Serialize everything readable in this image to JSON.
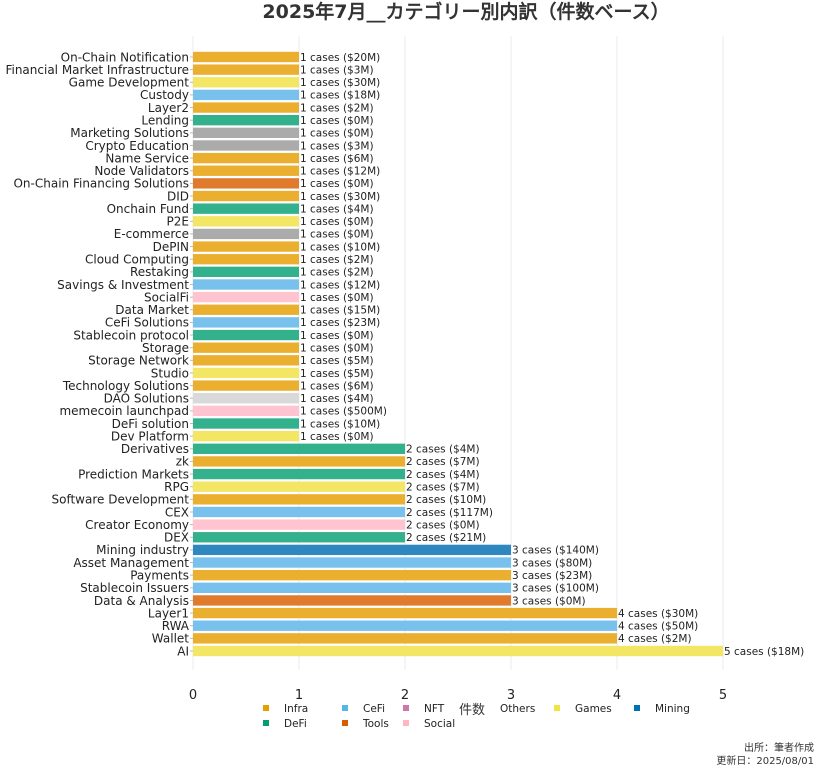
{
  "chart_data": {
    "type": "bar",
    "orientation": "horizontal",
    "title": "2025年7月__カテゴリー別内訳（件数ベース）",
    "xlabel": "件数",
    "ylabel": "",
    "xlim": [
      0,
      5.4
    ],
    "xticks": [
      "0",
      "1",
      "2",
      "3",
      "4",
      "5"
    ],
    "grid": true,
    "legend_placement": "bottom",
    "categories": [
      {
        "name": "On-Chain Notification",
        "count": 1,
        "label": "1 cases ($20M)",
        "group": "Infra"
      },
      {
        "name": "Financial Market Infrastructure",
        "count": 1,
        "label": "1 cases ($3M)",
        "group": "Infra"
      },
      {
        "name": "Game Development",
        "count": 1,
        "label": "1 cases ($30M)",
        "group": "Games"
      },
      {
        "name": "Custody",
        "count": 1,
        "label": "1 cases ($18M)",
        "group": "CeFi"
      },
      {
        "name": "Layer2",
        "count": 1,
        "label": "1 cases ($2M)",
        "group": "Infra"
      },
      {
        "name": "Lending",
        "count": 1,
        "label": "1 cases ($0M)",
        "group": "DeFi"
      },
      {
        "name": "Marketing Solutions",
        "count": 1,
        "label": "1 cases ($0M)",
        "group": "Others"
      },
      {
        "name": "Crypto Education",
        "count": 1,
        "label": "1 cases ($3M)",
        "group": "Others"
      },
      {
        "name": "Name Service",
        "count": 1,
        "label": "1 cases ($6M)",
        "group": "Infra"
      },
      {
        "name": "Node Validators",
        "count": 1,
        "label": "1 cases ($12M)",
        "group": "Infra"
      },
      {
        "name": "On-Chain Financing Solutions",
        "count": 1,
        "label": "1 cases ($0M)",
        "group": "Tools"
      },
      {
        "name": "DID",
        "count": 1,
        "label": "1 cases ($30M)",
        "group": "Infra"
      },
      {
        "name": "Onchain Fund",
        "count": 1,
        "label": "1 cases ($4M)",
        "group": "DeFi"
      },
      {
        "name": "P2E",
        "count": 1,
        "label": "1 cases ($0M)",
        "group": "Games"
      },
      {
        "name": "E-commerce",
        "count": 1,
        "label": "1 cases ($0M)",
        "group": "Others"
      },
      {
        "name": "DePIN",
        "count": 1,
        "label": "1 cases ($10M)",
        "group": "Infra"
      },
      {
        "name": "Cloud Computing",
        "count": 1,
        "label": "1 cases ($2M)",
        "group": "Infra"
      },
      {
        "name": "Restaking",
        "count": 1,
        "label": "1 cases ($2M)",
        "group": "DeFi"
      },
      {
        "name": "Savings & Investment",
        "count": 1,
        "label": "1 cases ($12M)",
        "group": "CeFi"
      },
      {
        "name": "SocialFi",
        "count": 1,
        "label": "1 cases ($0M)",
        "group": "Social"
      },
      {
        "name": "Data Market",
        "count": 1,
        "label": "1 cases ($15M)",
        "group": "Infra"
      },
      {
        "name": "CeFi Solutions",
        "count": 1,
        "label": "1 cases ($23M)",
        "group": "CeFi"
      },
      {
        "name": "Stablecoin protocol",
        "count": 1,
        "label": "1 cases ($0M)",
        "group": "DeFi"
      },
      {
        "name": "Storage",
        "count": 1,
        "label": "1 cases ($0M)",
        "group": "Infra"
      },
      {
        "name": "Storage Network",
        "count": 1,
        "label": "1 cases ($5M)",
        "group": "Infra"
      },
      {
        "name": "Studio",
        "count": 1,
        "label": "1 cases ($5M)",
        "group": "Games"
      },
      {
        "name": "Technology Solutions",
        "count": 1,
        "label": "1 cases ($6M)",
        "group": "Infra"
      },
      {
        "name": "DAO Solutions",
        "count": 1,
        "label": "1 cases ($4M)",
        "group": "Others-light"
      },
      {
        "name": "memecoin launchpad",
        "count": 1,
        "label": "1 cases ($500M)",
        "group": "Social"
      },
      {
        "name": "DeFi solution",
        "count": 1,
        "label": "1 cases ($10M)",
        "group": "DeFi"
      },
      {
        "name": "Dev Platform",
        "count": 1,
        "label": "1 cases ($0M)",
        "group": "Games"
      },
      {
        "name": "Derivatives",
        "count": 2,
        "label": "2 cases ($4M)",
        "group": "DeFi"
      },
      {
        "name": "zk",
        "count": 2,
        "label": "2 cases ($7M)",
        "group": "Infra"
      },
      {
        "name": "Prediction Markets",
        "count": 2,
        "label": "2 cases ($4M)",
        "group": "DeFi"
      },
      {
        "name": "RPG",
        "count": 2,
        "label": "2 cases ($7M)",
        "group": "Games"
      },
      {
        "name": "Software Development",
        "count": 2,
        "label": "2 cases ($10M)",
        "group": "Infra"
      },
      {
        "name": "CEX",
        "count": 2,
        "label": "2 cases ($117M)",
        "group": "CeFi"
      },
      {
        "name": "Creator Economy",
        "count": 2,
        "label": "2 cases ($0M)",
        "group": "Social"
      },
      {
        "name": "DEX",
        "count": 2,
        "label": "2 cases ($21M)",
        "group": "DeFi"
      },
      {
        "name": "Mining industry",
        "count": 3,
        "label": "3 cases ($140M)",
        "group": "Mining"
      },
      {
        "name": "Asset Management",
        "count": 3,
        "label": "3 cases ($80M)",
        "group": "CeFi"
      },
      {
        "name": "Payments",
        "count": 3,
        "label": "3 cases ($23M)",
        "group": "Infra"
      },
      {
        "name": "Stablecoin Issuers",
        "count": 3,
        "label": "3 cases ($100M)",
        "group": "CeFi"
      },
      {
        "name": "Data & Analysis",
        "count": 3,
        "label": "3 cases ($0M)",
        "group": "Tools"
      },
      {
        "name": "Layer1",
        "count": 4,
        "label": "4 cases ($30M)",
        "group": "Infra"
      },
      {
        "name": "RWA",
        "count": 4,
        "label": "4 cases ($50M)",
        "group": "CeFi"
      },
      {
        "name": "Wallet",
        "count": 4,
        "label": "4 cases ($2M)",
        "group": "Infra"
      },
      {
        "name": "AI",
        "count": 5,
        "label": "5 cases ($18M)",
        "group": "Games"
      }
    ],
    "group_colors": {
      "Infra": "#ebaf30",
      "CeFi": "#78c1ec",
      "NFT": "#cc79a7",
      "Others": "#ababab",
      "Others-light": "#d9d9d9",
      "Games": "#f2e664",
      "Mining": "#2f87bf",
      "DeFi": "#33b08c",
      "Tools": "#e07b2e",
      "Social": "#ffc4cf"
    },
    "legend": [
      {
        "label": "Infra",
        "color": "#e69f00"
      },
      {
        "label": "CeFi",
        "color": "#56b4e9"
      },
      {
        "label": "NFT",
        "color": "#cc79a7"
      },
      {
        "label": "Others",
        "color": null
      },
      {
        "label": "Games",
        "color": "#f0e442"
      },
      {
        "label": "Mining",
        "color": "#0072b2"
      },
      {
        "label": "DeFi",
        "color": "#009e73"
      },
      {
        "label": "Tools",
        "color": "#d55e00"
      },
      {
        "label": "Social",
        "color": "#ffb6c1"
      }
    ]
  },
  "footer": {
    "source": "出所：筆者作成",
    "updated": "更新日：2025/08/01"
  }
}
